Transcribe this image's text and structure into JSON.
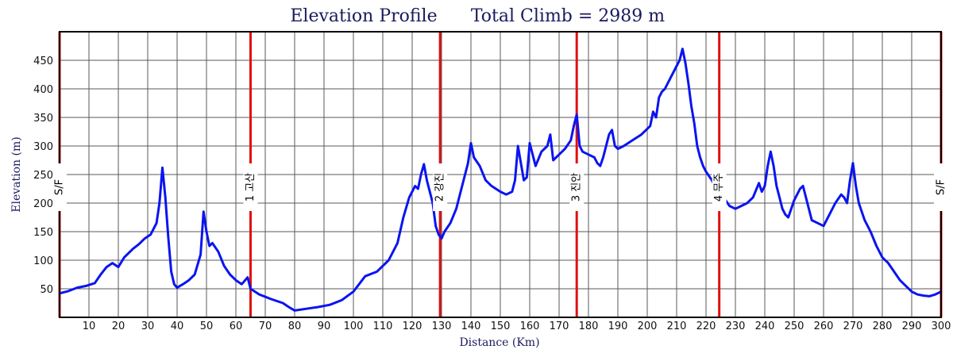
{
  "chart_data": {
    "type": "line",
    "title": "Elevation Profile",
    "subtitle": "Total Climb = 2989 m",
    "xlabel": "Distance (Km)",
    "ylabel": "Elevation (m)",
    "xlim": [
      0,
      300
    ],
    "ylim": [
      0,
      500
    ],
    "x_ticks": [
      10,
      20,
      30,
      40,
      50,
      60,
      70,
      80,
      90,
      100,
      110,
      120,
      130,
      140,
      150,
      160,
      170,
      180,
      190,
      200,
      210,
      220,
      230,
      240,
      250,
      260,
      270,
      280,
      290,
      300
    ],
    "y_ticks": [
      50,
      100,
      150,
      200,
      250,
      300,
      350,
      400,
      450
    ],
    "grid": true,
    "line_color": "#0a14f0",
    "marker_color": "#e01010",
    "markers": [
      {
        "x": 0,
        "label": "S/F"
      },
      {
        "x": 65,
        "label": "1 고산"
      },
      {
        "x": 129.5,
        "label": "2 강진"
      },
      {
        "x": 176,
        "label": "3 진안"
      },
      {
        "x": 224.5,
        "label": "4 무주"
      },
      {
        "x": 300,
        "label": "S/F"
      }
    ],
    "series": [
      {
        "x": [
          0,
          3,
          6,
          9,
          12,
          14,
          16,
          18,
          20,
          22,
          25,
          27,
          29,
          31,
          33,
          34,
          35,
          36,
          37,
          38,
          39,
          40,
          42,
          44,
          46,
          48,
          49,
          50,
          51,
          52,
          54,
          56,
          58,
          60,
          62,
          64,
          65,
          68,
          72,
          76,
          78,
          80,
          84,
          88,
          92,
          96,
          100,
          104,
          108,
          112,
          115,
          117,
          119,
          121,
          122,
          123,
          124,
          125,
          126,
          127,
          128,
          129,
          130,
          131,
          133,
          135,
          137,
          139,
          140,
          141,
          143,
          145,
          147,
          150,
          152,
          154,
          155,
          156,
          158,
          159,
          160,
          162,
          164,
          166,
          167,
          168,
          170,
          172,
          174,
          175,
          176,
          177,
          178,
          180,
          182,
          183,
          184,
          185,
          186,
          187,
          188,
          189,
          190,
          192,
          195,
          198,
          200,
          201,
          202,
          203,
          204,
          205,
          206,
          208,
          210,
          211,
          212,
          213,
          214,
          215,
          216,
          217,
          218,
          219,
          220,
          222,
          224,
          225,
          226,
          228,
          230,
          232,
          234,
          236,
          238,
          239,
          240,
          241,
          242,
          243,
          244,
          245,
          246,
          247,
          248,
          250,
          252,
          253,
          254,
          256,
          258,
          260,
          262,
          264,
          266,
          267,
          268,
          269,
          270,
          271,
          272,
          274,
          276,
          278,
          280,
          282,
          284,
          286,
          288,
          290,
          292,
          294,
          296,
          298,
          300
        ],
        "values": [
          42,
          46,
          52,
          55,
          60,
          75,
          88,
          95,
          88,
          105,
          120,
          128,
          138,
          145,
          165,
          200,
          262,
          210,
          140,
          80,
          58,
          52,
          58,
          65,
          75,
          110,
          185,
          150,
          125,
          130,
          115,
          90,
          75,
          65,
          58,
          70,
          50,
          40,
          32,
          25,
          18,
          12,
          15,
          18,
          22,
          30,
          45,
          72,
          80,
          100,
          130,
          175,
          210,
          230,
          225,
          250,
          268,
          240,
          220,
          200,
          160,
          145,
          138,
          150,
          165,
          190,
          230,
          270,
          305,
          280,
          265,
          240,
          230,
          220,
          215,
          220,
          240,
          300,
          240,
          245,
          305,
          265,
          290,
          300,
          320,
          275,
          285,
          295,
          310,
          335,
          355,
          300,
          290,
          285,
          280,
          270,
          265,
          280,
          300,
          320,
          328,
          300,
          295,
          300,
          310,
          320,
          330,
          335,
          360,
          350,
          385,
          395,
          400,
          420,
          440,
          450,
          470,
          445,
          410,
          370,
          340,
          300,
          280,
          265,
          255,
          240,
          218,
          200,
          210,
          195,
          190,
          195,
          200,
          210,
          235,
          220,
          230,
          265,
          290,
          265,
          230,
          210,
          190,
          180,
          175,
          205,
          225,
          230,
          210,
          170,
          165,
          160,
          180,
          200,
          215,
          210,
          200,
          240,
          270,
          230,
          200,
          170,
          150,
          125,
          105,
          95,
          80,
          65,
          55,
          45,
          40,
          38,
          37,
          40,
          45
        ]
      }
    ]
  }
}
